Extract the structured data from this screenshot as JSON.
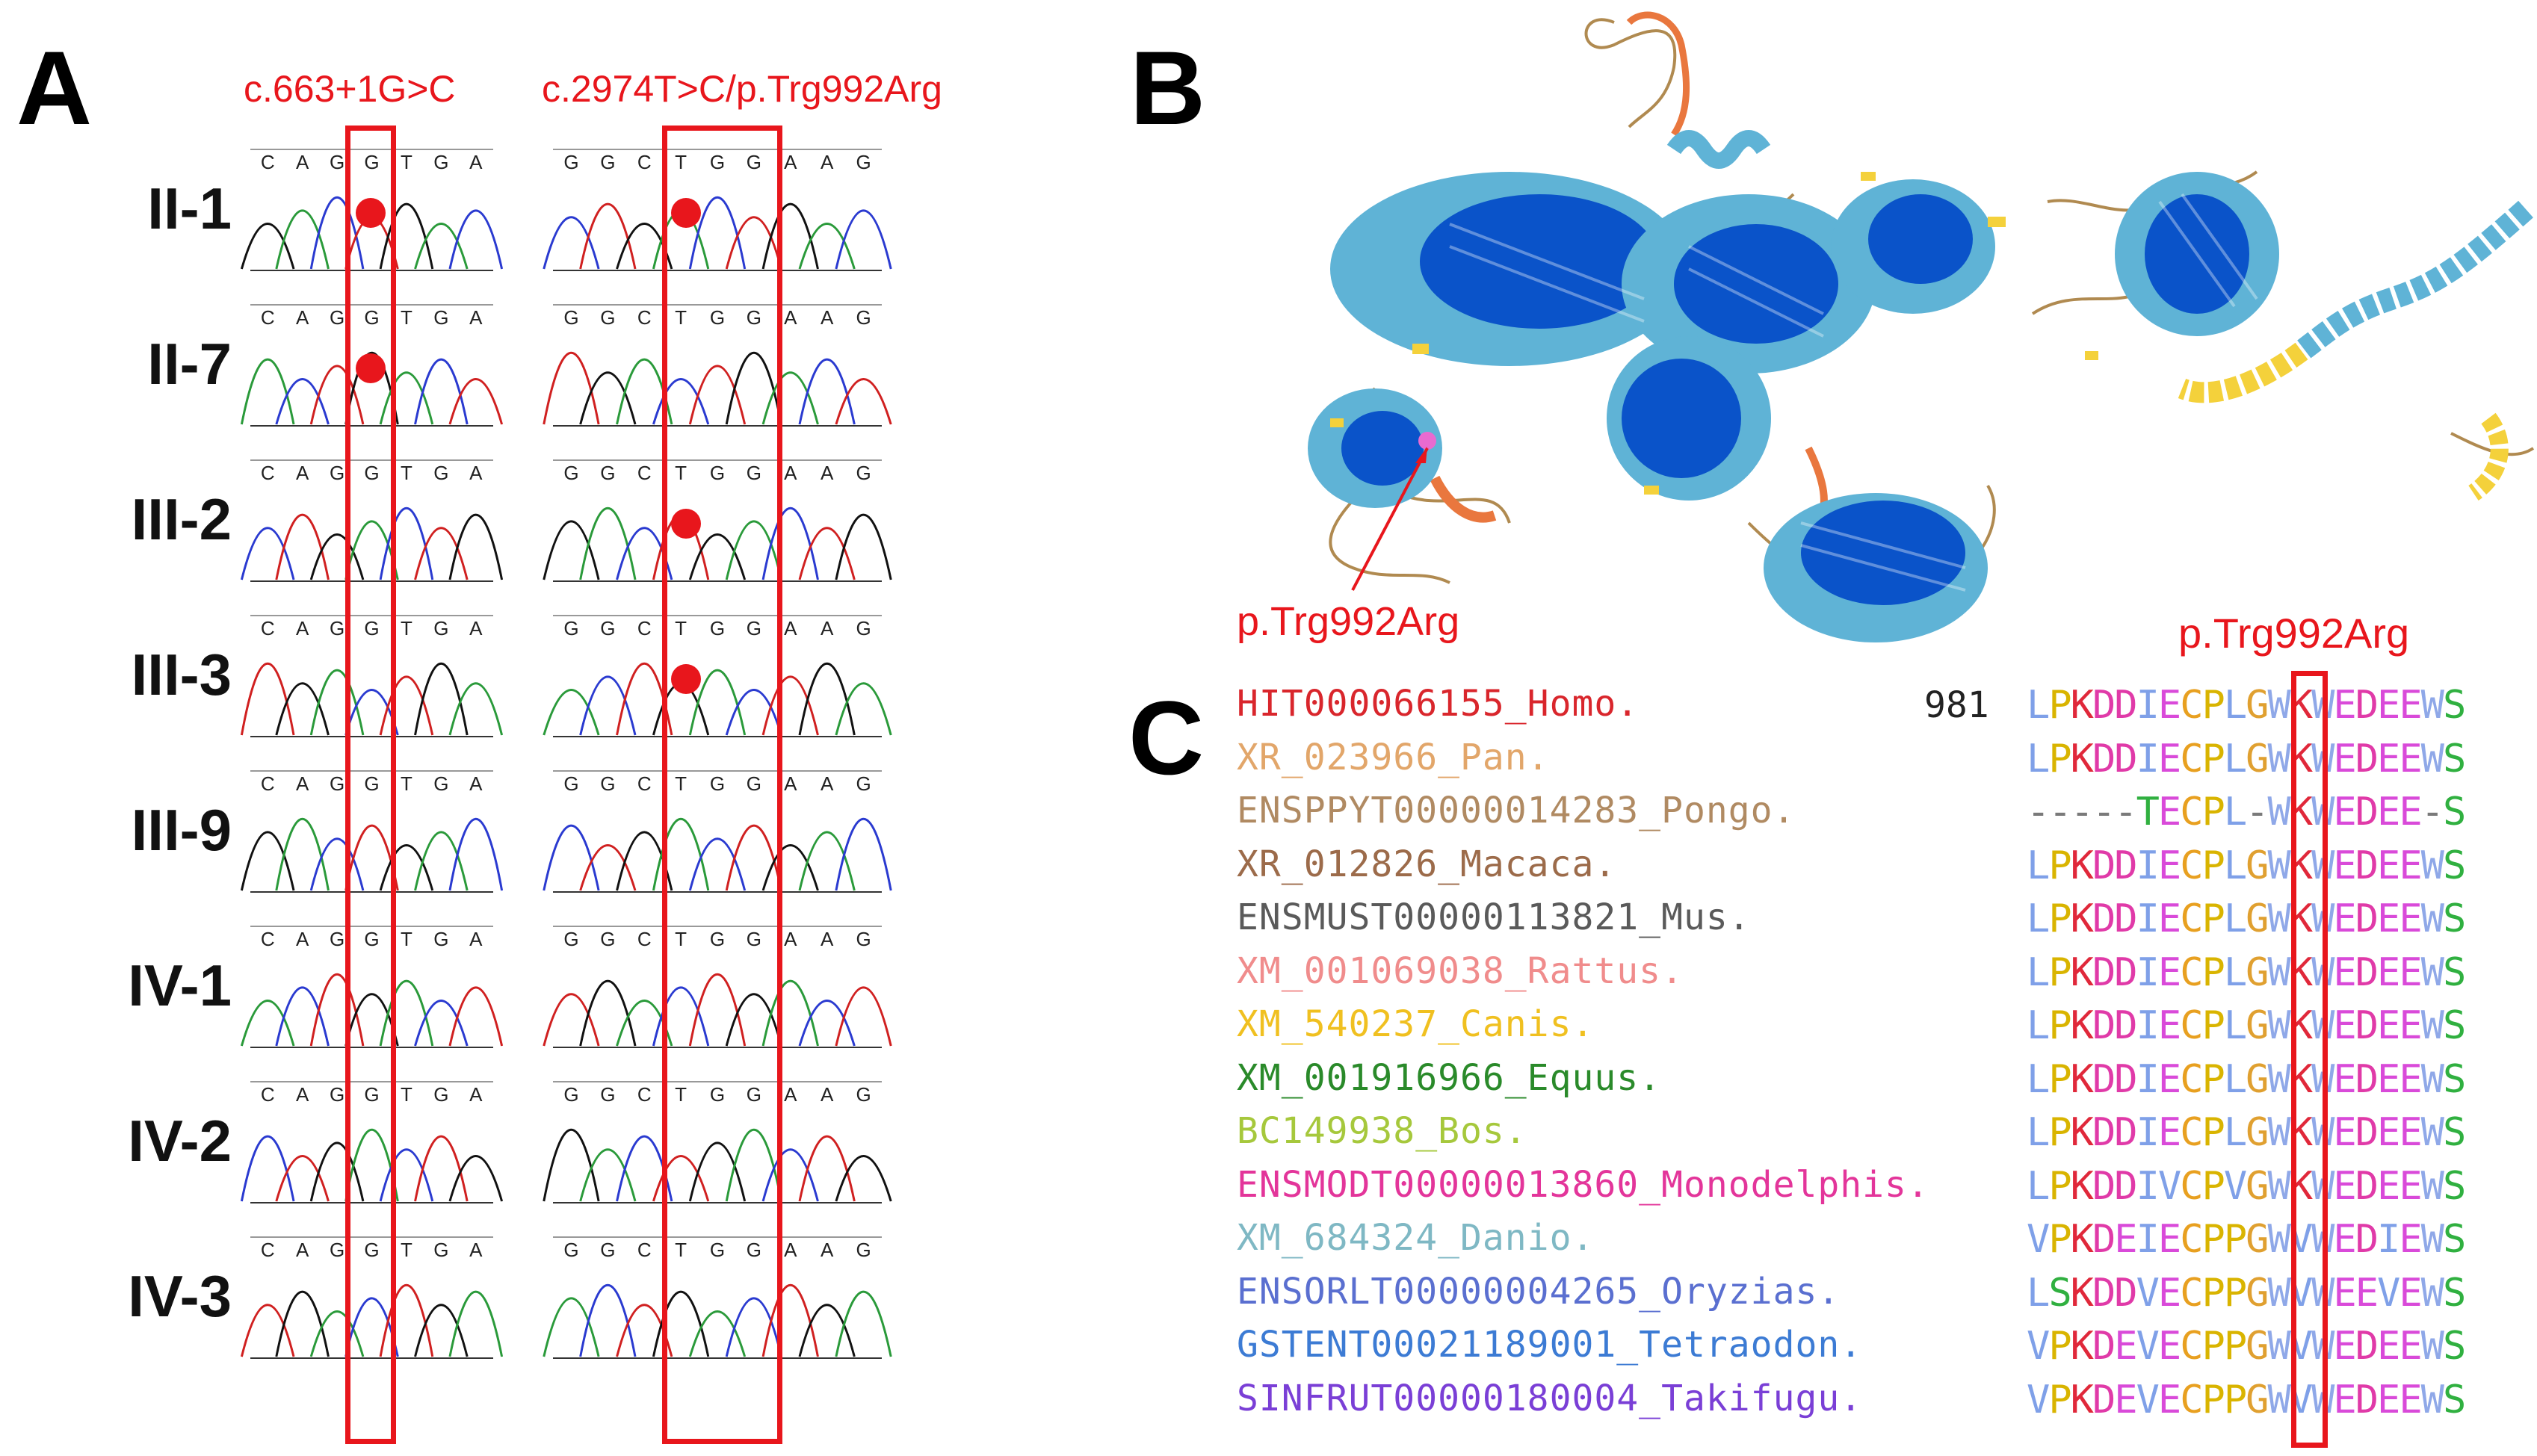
{
  "panels": {
    "a": "A",
    "b": "B",
    "c": "C"
  },
  "panel_a": {
    "mutation_left": "c.663+1G>C",
    "mutation_right": "c.2974T>C/p.Trg992Arg",
    "samples": [
      "II-1",
      "II-7",
      "III-2",
      "III-3",
      "III-9",
      "IV-1",
      "IV-2",
      "IV-3"
    ],
    "left_carrier": [
      true,
      true,
      false,
      false,
      false,
      false,
      false,
      false
    ],
    "right_carrier": [
      true,
      false,
      true,
      true,
      false,
      false,
      false,
      false
    ],
    "left_bases": [
      "C",
      "A",
      "G",
      "G",
      "T",
      "G",
      "A"
    ],
    "right_bases": [
      "G",
      "G",
      "C",
      "T",
      "G",
      "G",
      "A",
      "A",
      "G"
    ],
    "mutant_marker_color": "#e8161c"
  },
  "panel_b": {
    "annotation": "p.Trg992Arg",
    "colors": {
      "very_high": "#0a53c9",
      "confident": "#5fb3d6",
      "low": "#f4d13b",
      "very_low": "#e9773e"
    }
  },
  "panel_c": {
    "header": "p.Trg992Arg",
    "start_position": "981",
    "species": [
      {
        "name": "HIT000066155_Homo.",
        "color": "#d9262c",
        "seq": "LPKDDIECPLGWKWEDEEWS"
      },
      {
        "name": "XR_023966_Pan.",
        "color": "#e2a66a",
        "seq": "LPKDDIECPLGWKWEDEEWS"
      },
      {
        "name": "ENSPPYT00000014283_Pongo.",
        "color": "#b08a62",
        "seq": "-----TECPL-WKWEDEE-S"
      },
      {
        "name": "XR_012826_Macaca.",
        "color": "#9c6b4a",
        "seq": "LPKDDIECPLGWKWEDEEWS"
      },
      {
        "name": "ENSMUST00000113821_Mus.",
        "color": "#5a5a5a",
        "seq": "LPKDDIECPLGWKWEDEEWS"
      },
      {
        "name": "XM_001069038_Rattus.",
        "color": "#f08c8c",
        "seq": "LPKDDIECPLGWKWEDEEWS"
      },
      {
        "name": "XM_540237_Canis.",
        "color": "#f0c020",
        "seq": "LPKDDIECPLGWKWEDEEWS"
      },
      {
        "name": "XM_001916966_Equus.",
        "color": "#2a8a2a",
        "seq": "LPKDDIECPLGWKWEDEEWS"
      },
      {
        "name": "BC149938_Bos.",
        "color": "#a6c83c",
        "seq": "LPKDDIECPLGWKWEDEEWS"
      },
      {
        "name": "ENSMODT00000013860_Monodelphis.",
        "color": "#e3359a",
        "seq": "LPKDDIVCPVGWKWEDEEWS"
      },
      {
        "name": "XM_684324_Danio.",
        "color": "#7fb8c4",
        "seq": "VPKDEIECPPGWVWEDIEWS"
      },
      {
        "name": "ENSORLT00000004265_Oryzias.",
        "color": "#5a6fd0",
        "seq": "LSKDDVECPPGWVWEEVEWS"
      },
      {
        "name": "GSTENT00021189001_Tetraodon.",
        "color": "#3c7bd4",
        "seq": "VPKDEVECPPGWVWEDEEWS"
      },
      {
        "name": "SINFRUT00000180004_Takifugu.",
        "color": "#7a3fd6",
        "seq": "VPKDEVECPPGWVWEDEEWS"
      }
    ],
    "aa_colors": {
      "L": "#7fa0e8",
      "P": "#d9b400",
      "K": "#e0283a",
      "D": "#e03aa8",
      "I": "#7fa0e8",
      "E": "#d94ad9",
      "C": "#e8a020",
      "G": "#e0a030",
      "W": "#8fa8e8",
      "S": "#30b040",
      "V": "#7fa0e8",
      "T": "#30b040",
      "-": "#7a7a7a"
    }
  }
}
